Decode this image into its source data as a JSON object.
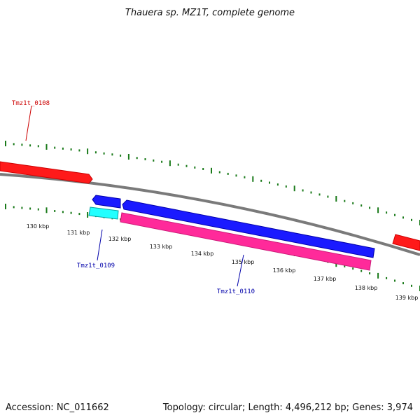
{
  "title": "Thauera sp. MZ1T, complete genome",
  "footer": {
    "accession": "Accession: NC_011662",
    "info": "Topology: circular; Length: 4,496,212 bp; Genes: 3,974"
  },
  "colors": {
    "backbone": "#7a7a7a",
    "tick": "#1a7a1a",
    "forward_gene": "#ff1a1a",
    "reverse_gene": "#1a1aff",
    "rrna": "#ff2a9a",
    "trna": "#22ffff",
    "label_forward": "#cc0000",
    "label_reverse": "#0000aa"
  },
  "ticks": {
    "labels": [
      "130 kbp",
      "131 kbp",
      "132 kbp",
      "133 kbp",
      "134 kbp",
      "135 kbp",
      "136 kbp",
      "137 kbp",
      "138 kbp",
      "139 kbp"
    ]
  },
  "genes": [
    {
      "name": "Tmz1t_0108",
      "strand": "forward",
      "color": "forward_gene"
    },
    {
      "name": "Tmz1t_0109",
      "strand": "reverse",
      "color": "reverse_gene"
    },
    {
      "name": "Tmz1t_0110",
      "strand": "reverse",
      "color": "reverse_gene"
    }
  ],
  "labels": {
    "gene_0108": "Tmz1t_0108",
    "gene_0109": "Tmz1t_0109",
    "gene_0110": "Tmz1t_0110"
  }
}
